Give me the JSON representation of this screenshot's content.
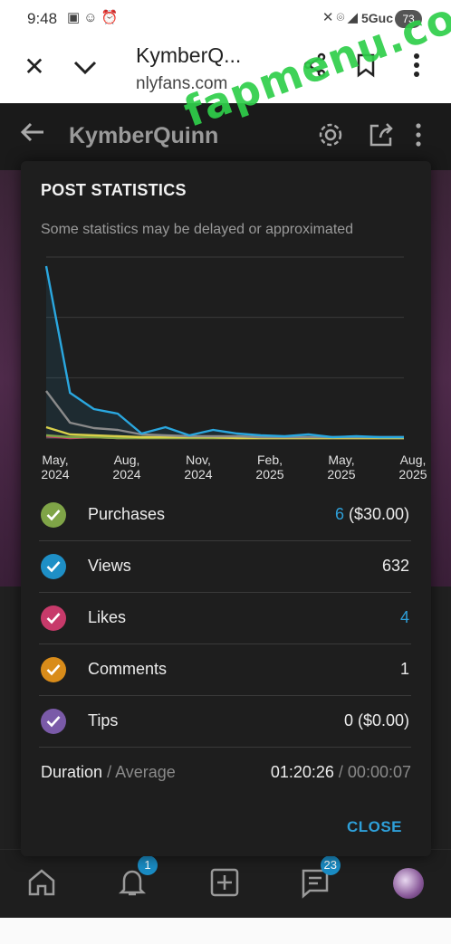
{
  "status_bar": {
    "time": "9:48",
    "network": "5Guc",
    "battery": "73",
    "left_icons": [
      "screenshot-icon",
      "snapchat-icon",
      "alarm-icon"
    ],
    "right_icons": [
      "mute-icon",
      "location-icon",
      "signal-icon"
    ]
  },
  "browser": {
    "title": "KymberQ...",
    "url": "nlyfans.com",
    "watermark": "fapmenu.com"
  },
  "app_header": {
    "name": "KymberQuinn"
  },
  "modal": {
    "heading": "POST STATISTICS",
    "note": "Some statistics may be delayed or approximated",
    "close_label": "CLOSE",
    "duration": {
      "label": "Duration",
      "sub_label": "/ Average",
      "value": "01:20:26",
      "average": "/ 00:00:07"
    },
    "stats": [
      {
        "label": "Purchases",
        "value_accent": "6",
        "value": " ($30.00)",
        "color": "#7fa447"
      },
      {
        "label": "Views",
        "value_accent": "",
        "value": "632",
        "color": "#1e8fc6"
      },
      {
        "label": "Likes",
        "value_accent": "4",
        "value": "",
        "color": "#c73a6a"
      },
      {
        "label": "Comments",
        "value_accent": "",
        "value": "1",
        "color": "#d98c1a"
      },
      {
        "label": "Tips",
        "value_accent": "",
        "value": "0 ($0.00)",
        "color": "#7a5aa8"
      }
    ]
  },
  "chart_data": {
    "type": "line",
    "x_tick_labels": [
      [
        "May,",
        "2024"
      ],
      [
        "Aug,",
        "2024"
      ],
      [
        "Nov,",
        "2024"
      ],
      [
        "Feb,",
        "2025"
      ],
      [
        "May,",
        "2025"
      ],
      [
        "Aug,",
        "2025"
      ]
    ],
    "x": [
      0,
      1,
      2,
      3,
      4,
      5,
      6,
      7,
      8,
      9,
      10,
      11,
      12,
      13,
      14,
      15
    ],
    "ylim": [
      0,
      200
    ],
    "grid": true,
    "series": [
      {
        "color": "#2aa7df",
        "values": [
          190,
          50,
          32,
          27,
          5,
          12,
          3,
          9,
          5,
          3,
          2,
          4,
          1,
          2,
          1,
          1
        ]
      },
      {
        "color": "#8a8a8a",
        "values": [
          52,
          17,
          11,
          9,
          4,
          3,
          2,
          2,
          2,
          1,
          1,
          1,
          1,
          1,
          1,
          1
        ]
      },
      {
        "color": "#d8d04a",
        "values": [
          12,
          4,
          3,
          2,
          1,
          1,
          1,
          1,
          0,
          0,
          0,
          0,
          0,
          0,
          0,
          0
        ]
      },
      {
        "color": "#7fa447",
        "values": [
          3,
          1,
          1,
          0,
          0,
          0,
          0,
          0,
          0,
          0,
          0,
          0,
          0,
          0,
          0,
          0
        ]
      },
      {
        "color": "#c73a6a",
        "values": [
          2,
          0,
          1,
          0,
          0,
          0,
          0,
          0,
          0,
          0,
          0,
          0,
          0,
          0,
          0,
          0
        ]
      }
    ]
  }
}
